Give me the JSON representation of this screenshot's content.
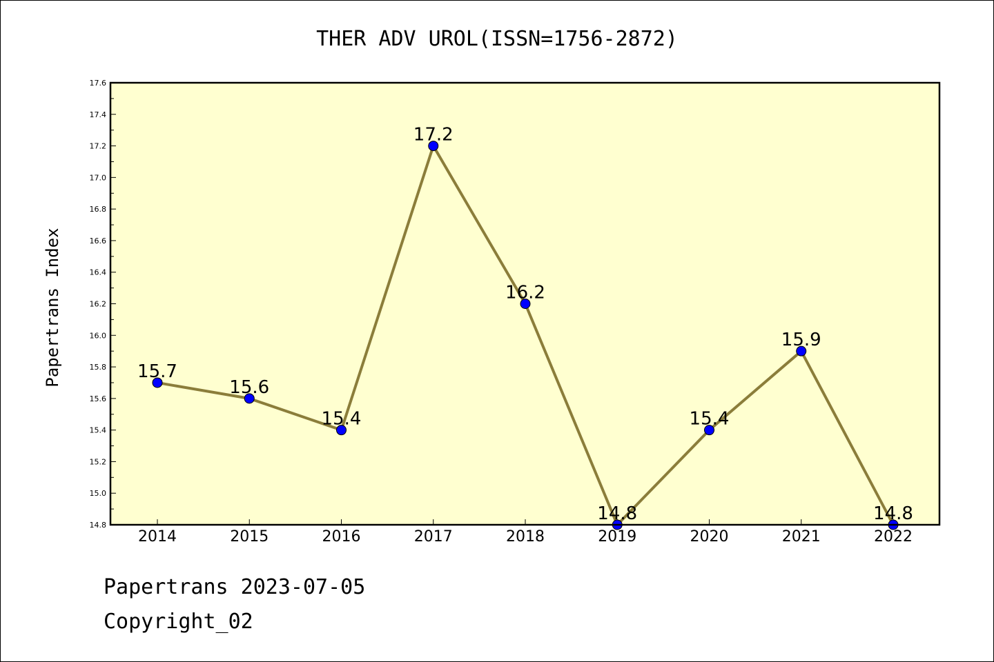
{
  "chart_data": {
    "type": "line",
    "title": "THER ADV UROL(ISSN=1756-2872)",
    "xlabel": "",
    "ylabel": "Papertrans Index",
    "categories": [
      "2014",
      "2015",
      "2016",
      "2017",
      "2018",
      "2019",
      "2020",
      "2021",
      "2022"
    ],
    "values": [
      15.7,
      15.6,
      15.4,
      17.2,
      16.2,
      14.8,
      15.4,
      15.9,
      14.8
    ],
    "data_labels": [
      "15.7",
      "15.6",
      "15.4",
      "17.2",
      "16.2",
      "14.8",
      "15.4",
      "15.9",
      "14.8"
    ],
    "ylim": [
      14.8,
      17.6
    ],
    "yticks": [
      "14.8",
      "15.0",
      "15.2",
      "15.4",
      "15.6",
      "15.8",
      "16.0",
      "16.2",
      "16.4",
      "16.6",
      "16.8",
      "17.0",
      "17.2",
      "17.4",
      "17.6"
    ],
    "grid": false,
    "legend": "none",
    "colors": {
      "plot_background": "#FFFFD0",
      "line": "#8B7D3A",
      "marker": "#0000FF"
    }
  },
  "footer": {
    "line1": "Papertrans 2023-07-05",
    "line2": "Copyright_02"
  }
}
